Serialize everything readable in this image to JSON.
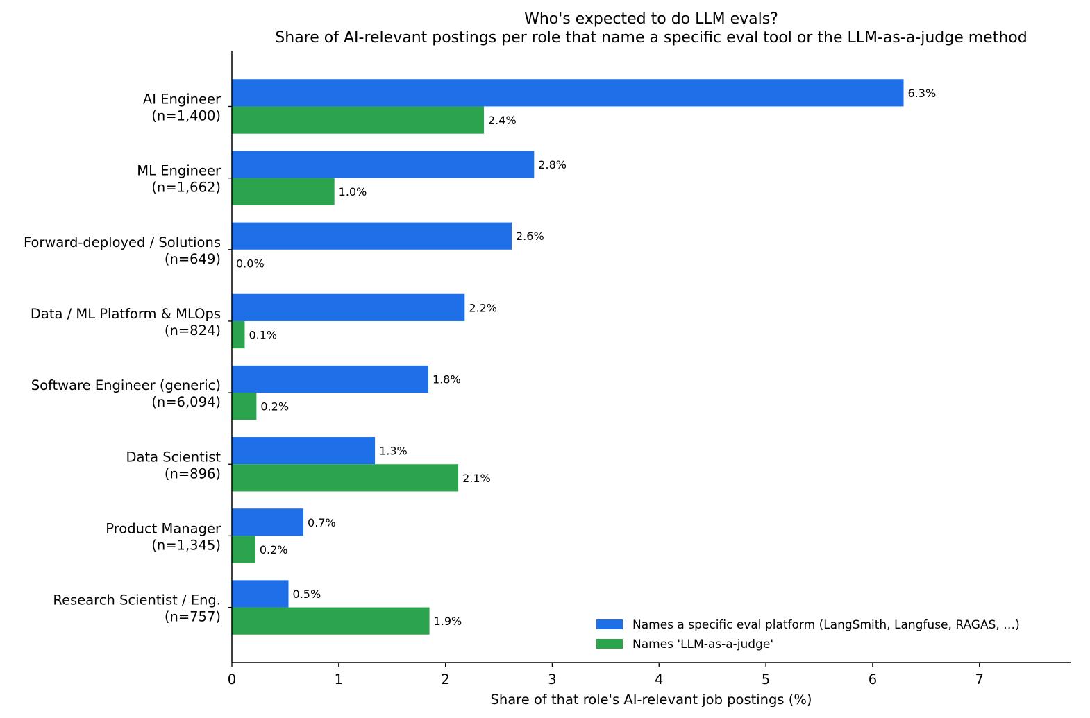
{
  "chart_data": {
    "type": "bar",
    "orientation": "horizontal",
    "title_line1": "Who's expected to do LLM evals?",
    "title_line2": "Share of AI-relevant postings per role that name a specific eval tool or the LLM-as-a-judge method",
    "xlabel": "Share of that role's AI-relevant job postings (%)",
    "ylabel": "",
    "xlim": [
      0,
      7.86
    ],
    "xticks": [
      "0",
      "1",
      "2",
      "3",
      "4",
      "5",
      "6",
      "7"
    ],
    "categories": [
      {
        "name": "AI Engineer",
        "n": "(n=1,400)"
      },
      {
        "name": "ML Engineer",
        "n": "(n=1,662)"
      },
      {
        "name": "Forward-deployed / Solutions",
        "n": "(n=649)"
      },
      {
        "name": "Data / ML Platform & MLOps",
        "n": "(n=824)"
      },
      {
        "name": "Software Engineer (generic)",
        "n": "(n=6,094)"
      },
      {
        "name": "Data Scientist",
        "n": "(n=896)"
      },
      {
        "name": "Product Manager",
        "n": "(n=1,345)"
      },
      {
        "name": "Research Scientist / Eng.",
        "n": "(n=757)"
      }
    ],
    "series": [
      {
        "name": "Names a specific eval platform (LangSmith, Langfuse, RAGAS, …)",
        "color": "#1f6fe8",
        "values": [
          6.29,
          2.83,
          2.62,
          2.18,
          1.84,
          1.34,
          0.67,
          0.53
        ],
        "labels": [
          "6.3%",
          "2.8%",
          "2.6%",
          "2.2%",
          "1.8%",
          "1.3%",
          "0.7%",
          "0.5%"
        ]
      },
      {
        "name": "Names 'LLM-as-a-judge'",
        "color": "#2ca44e",
        "values": [
          2.36,
          0.96,
          0.0,
          0.12,
          0.23,
          2.12,
          0.22,
          1.85
        ],
        "labels": [
          "2.4%",
          "1.0%",
          "0.0%",
          "0.1%",
          "0.2%",
          "2.1%",
          "0.2%",
          "1.9%"
        ]
      }
    ],
    "legend_position": "lower-right",
    "grid": false
  }
}
